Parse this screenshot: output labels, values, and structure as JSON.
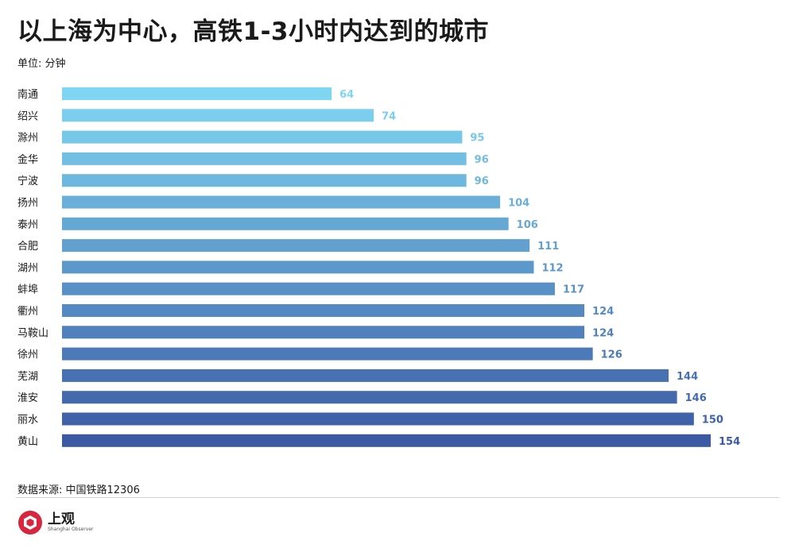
{
  "title": "以上海为中心，高铁1-3小时内达到的城市",
  "unit": "单位: 分钟",
  "source": "数据来源: 中国铁路12306",
  "logo": {
    "text_cn": "上观",
    "text_en": "Shanghai Observer"
  },
  "chart_data": {
    "type": "bar",
    "orientation": "horizontal",
    "title": "以上海为中心，高铁1-3小时内达到的城市",
    "xlabel": "",
    "ylabel": "",
    "unit": "分钟",
    "categories": [
      "南通",
      "绍兴",
      "滁州",
      "金华",
      "宁波",
      "扬州",
      "泰州",
      "合肥",
      "湖州",
      "蚌埠",
      "衢州",
      "马鞍山",
      "徐州",
      "芜湖",
      "淮安",
      "丽水",
      "黄山"
    ],
    "values": [
      64,
      74,
      95,
      96,
      96,
      104,
      106,
      111,
      112,
      117,
      124,
      124,
      126,
      144,
      146,
      150,
      154
    ],
    "xlim": [
      0,
      154
    ],
    "grid": false,
    "legend": "none",
    "color_gradient": [
      "#7fd6f2",
      "#3b5aa3"
    ]
  }
}
